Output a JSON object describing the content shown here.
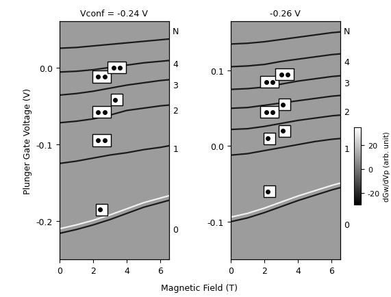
{
  "xlabel": "Magnetic Field (T)",
  "ylabel": "Plunger Gate Voltage (V)",
  "colorbar": {
    "label": "dGw/dVp (arb. unit)",
    "range": [
      -30,
      35
    ],
    "ticks": [
      -20,
      0,
      20
    ]
  },
  "chart_data": [
    {
      "type": "line",
      "title": "Vconf = -0.24 V",
      "xlim": [
        0,
        6.5
      ],
      "xticks": [
        0,
        2,
        4,
        6
      ],
      "ylim": [
        -0.25,
        0.06
      ],
      "yticks": [
        -0.2,
        -0.1,
        {
          "value": 0.0,
          "label": "0.0"
        }
      ],
      "x": [
        0,
        1,
        2,
        3,
        4,
        5,
        6,
        6.5
      ],
      "series": [
        {
          "color": "#f2f2f2",
          "values": [
            -0.21,
            -0.205,
            -0.199,
            -0.192,
            -0.184,
            -0.176,
            -0.17,
            -0.167
          ]
        },
        {
          "color": "#1a1a1a",
          "values": [
            -0.216,
            -0.211,
            -0.205,
            -0.198,
            -0.19,
            -0.182,
            -0.176,
            -0.173
          ]
        },
        {
          "color": "#1a1a1a",
          "values": [
            -0.125,
            -0.122,
            -0.118,
            -0.114,
            -0.111,
            -0.107,
            -0.104,
            -0.102
          ]
        },
        {
          "color": "#1a1a1a",
          "values": [
            -0.072,
            -0.07,
            -0.067,
            -0.062,
            -0.056,
            -0.053,
            -0.05,
            -0.049
          ]
        },
        {
          "color": "#1a1a1a",
          "values": [
            -0.036,
            -0.034,
            -0.031,
            -0.027,
            -0.023,
            -0.02,
            -0.017,
            -0.016
          ]
        },
        {
          "color": "#1a1a1a",
          "values": [
            -0.006,
            -0.005,
            -0.003,
            0.0,
            0.003,
            0.006,
            0.008,
            0.009
          ]
        },
        {
          "color": "#1a1a1a",
          "values": [
            0.025,
            0.026,
            0.028,
            0.03,
            0.032,
            0.034,
            0.036,
            0.037
          ]
        }
      ],
      "right_axis": {
        "label": "N",
        "ticks": [
          {
            "value": -0.21,
            "label": "0"
          },
          {
            "value": -0.105,
            "label": "1"
          },
          {
            "value": -0.055,
            "label": "2"
          },
          {
            "value": -0.022,
            "label": "3"
          },
          {
            "value": 0.006,
            "label": "4"
          }
        ]
      },
      "spin_boxes": [
        {
          "x": 2.5,
          "y": -0.185,
          "dots": 1
        },
        {
          "x": 2.5,
          "y": -0.095,
          "dots": 2
        },
        {
          "x": 2.5,
          "y": -0.058,
          "dots": 2
        },
        {
          "x": 3.4,
          "y": -0.042,
          "dots": 1
        },
        {
          "x": 2.5,
          "y": -0.012,
          "dots": 2
        },
        {
          "x": 3.4,
          "y": 0.0,
          "dots": 2
        }
      ]
    },
    {
      "type": "line",
      "title": "-0.26 V",
      "xlim": [
        0,
        6.5
      ],
      "xticks": [
        0,
        2,
        4,
        6
      ],
      "ylim": [
        -0.15,
        0.165
      ],
      "yticks": [
        -0.1,
        {
          "value": 0.0,
          "label": "0.0"
        },
        0.1
      ],
      "x": [
        0,
        1,
        2,
        3,
        4,
        5,
        6,
        6.5
      ],
      "series": [
        {
          "color": "#f2f2f2",
          "values": [
            -0.094,
            -0.089,
            -0.082,
            -0.074,
            -0.066,
            -0.059,
            -0.052,
            -0.049
          ]
        },
        {
          "color": "#1a1a1a",
          "values": [
            -0.1,
            -0.095,
            -0.088,
            -0.08,
            -0.072,
            -0.065,
            -0.058,
            -0.055
          ]
        },
        {
          "color": "#1a1a1a",
          "values": [
            -0.012,
            -0.01,
            -0.006,
            -0.002,
            0.002,
            0.006,
            0.009,
            0.01
          ]
        },
        {
          "color": "#1a1a1a",
          "values": [
            0.022,
            0.023,
            0.026,
            0.03,
            0.034,
            0.037,
            0.04,
            0.041
          ]
        },
        {
          "color": "#1a1a1a",
          "values": [
            0.05,
            0.051,
            0.054,
            0.057,
            0.06,
            0.063,
            0.066,
            0.067
          ]
        },
        {
          "color": "#1a1a1a",
          "values": [
            0.075,
            0.076,
            0.078,
            0.082,
            0.086,
            0.089,
            0.092,
            0.093
          ]
        },
        {
          "color": "#1a1a1a",
          "values": [
            0.105,
            0.106,
            0.108,
            0.112,
            0.115,
            0.118,
            0.121,
            0.122
          ]
        },
        {
          "color": "#1a1a1a",
          "values": [
            0.135,
            0.136,
            0.138,
            0.141,
            0.144,
            0.147,
            0.15,
            0.151
          ]
        }
      ],
      "right_axis": {
        "label": "N",
        "ticks": [
          {
            "value": -0.103,
            "label": "0"
          },
          {
            "value": -0.002,
            "label": "1"
          },
          {
            "value": 0.047,
            "label": "2"
          },
          {
            "value": 0.085,
            "label": "3"
          },
          {
            "value": 0.113,
            "label": "4"
          }
        ]
      },
      "spin_boxes": [
        {
          "x": 2.3,
          "y": -0.06,
          "dots": 1
        },
        {
          "x": 2.3,
          "y": 0.01,
          "dots": 1
        },
        {
          "x": 3.2,
          "y": 0.02,
          "dots": 1
        },
        {
          "x": 2.3,
          "y": 0.045,
          "dots": 2
        },
        {
          "x": 3.2,
          "y": 0.055,
          "dots": 1
        },
        {
          "x": 2.3,
          "y": 0.085,
          "dots": 2
        },
        {
          "x": 3.2,
          "y": 0.095,
          "dots": 2
        }
      ]
    }
  ]
}
